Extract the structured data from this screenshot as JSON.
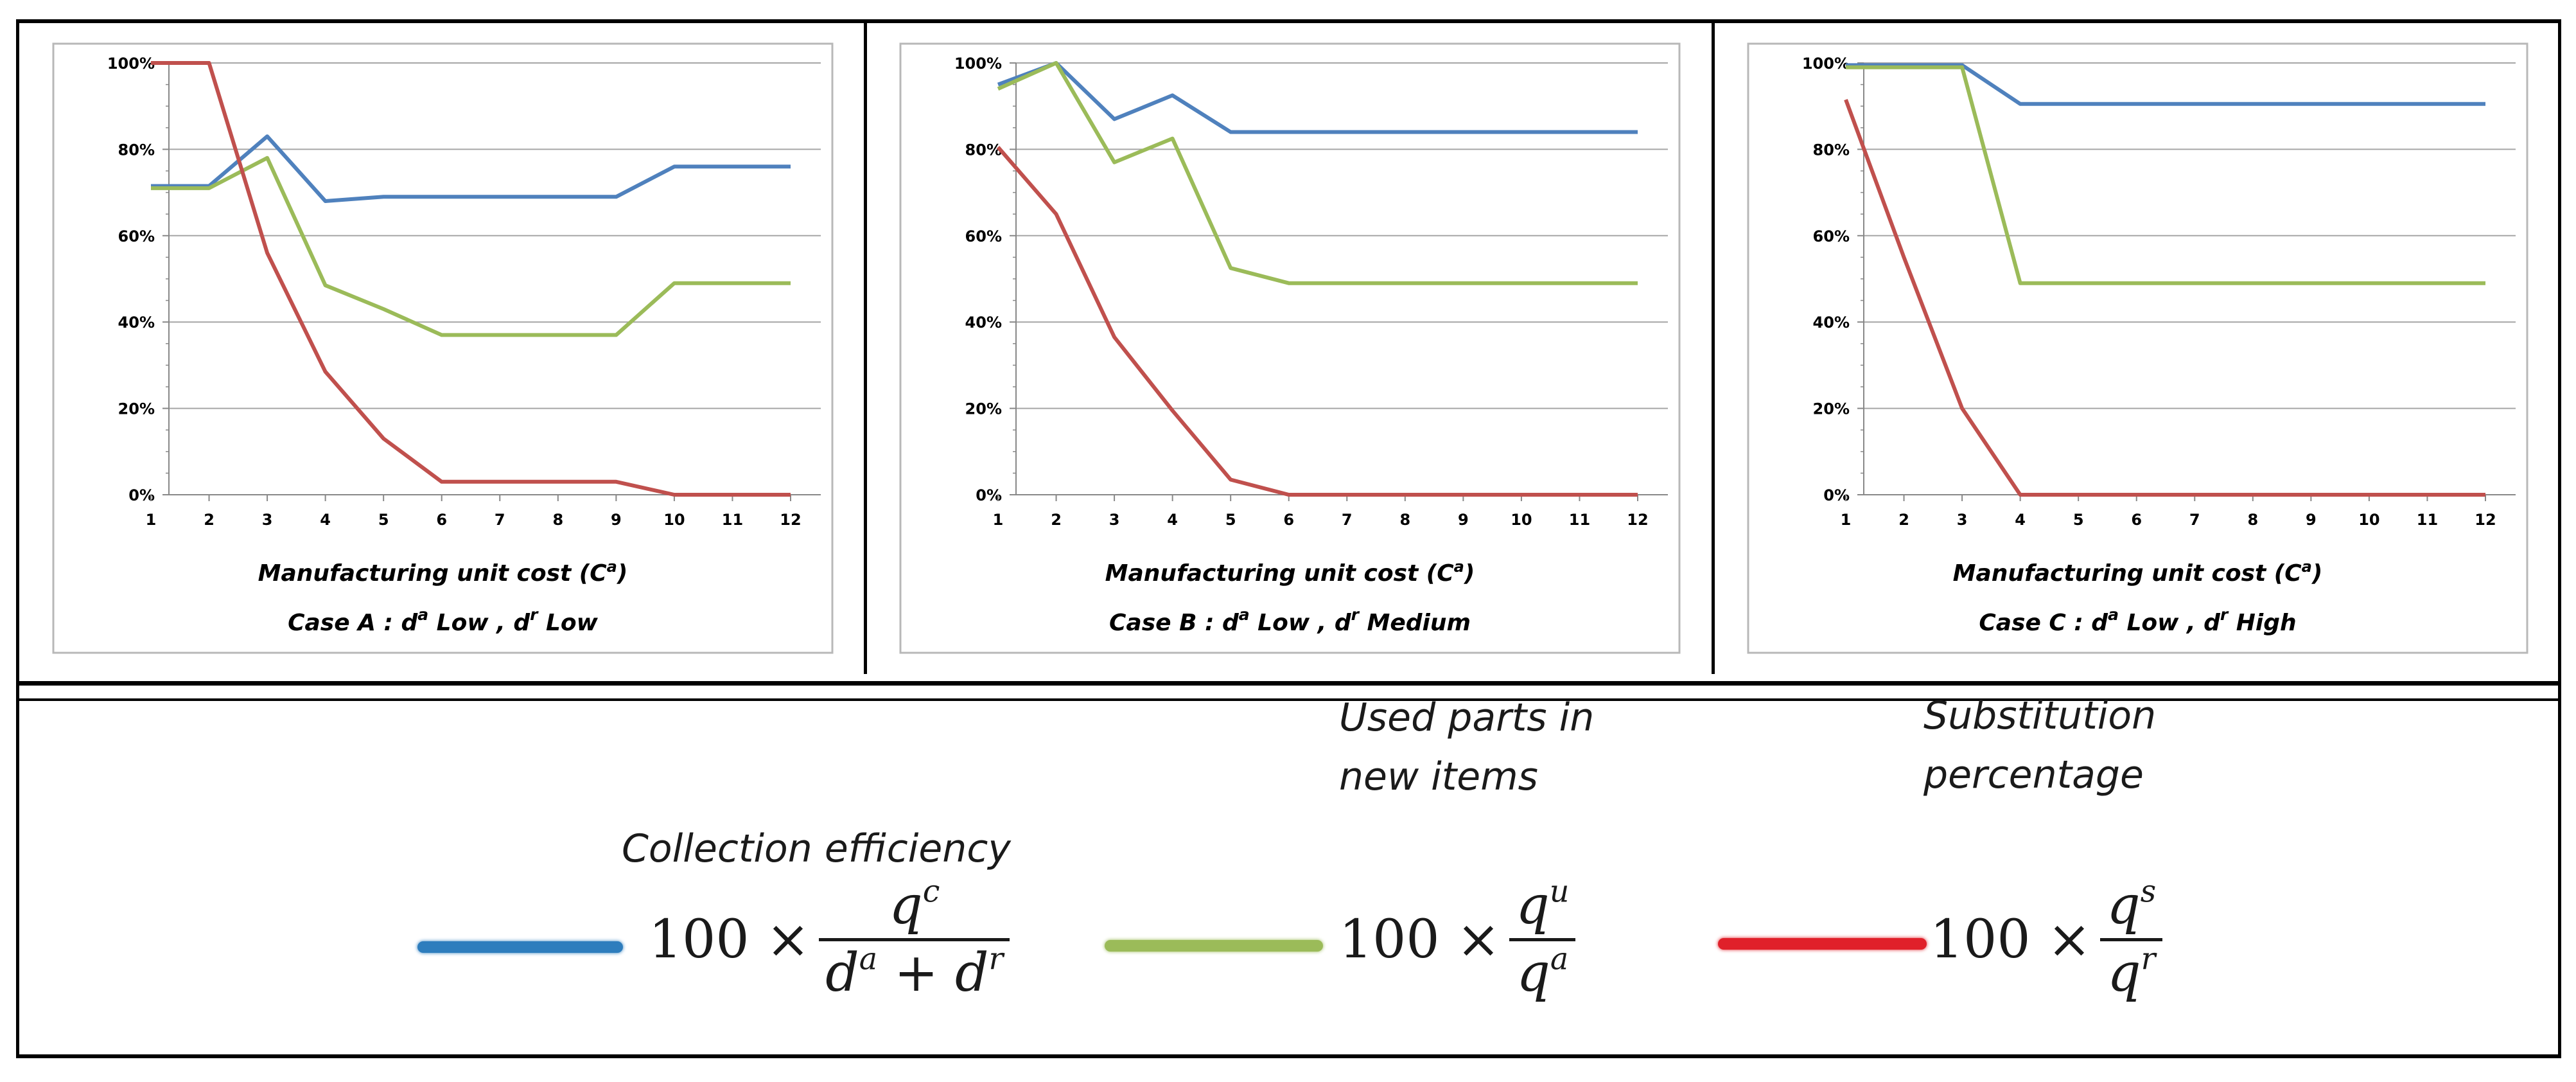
{
  "charts": [
    {
      "case": "A",
      "caption": {
        "prefix": "Case A : d",
        "sup_a": "a",
        "demand_a": "Low",
        "comma": ", d",
        "sup_r": "r",
        "demand_r": "Low"
      }
    },
    {
      "case": "B",
      "caption": {
        "prefix": "Case B : d",
        "sup_a": "a",
        "demand_a": "Low",
        "comma": ", d",
        "sup_r": "r",
        "demand_r": "Medium"
      }
    },
    {
      "case": "C",
      "caption": {
        "prefix": "Case C : d",
        "sup_a": "a",
        "demand_a": "Low",
        "comma": ", d",
        "sup_r": "r",
        "demand_r": "High"
      }
    }
  ],
  "axis": {
    "xlabel_text": "Manufacturing unit cost",
    "xlabel_var": "C",
    "xlabel_sup": "a",
    "x_ticks": [
      "1",
      "2",
      "3",
      "4",
      "5",
      "6",
      "7",
      "8",
      "9",
      "10",
      "11",
      "12"
    ],
    "y_ticks": [
      "0%",
      "20%",
      "40%",
      "60%",
      "80%",
      "100%"
    ]
  },
  "legend": {
    "items": [
      {
        "title_lines": [
          "Collection efficiency"
        ],
        "coef": "100 ×",
        "num": "q",
        "num_sup": "c",
        "den_parts": [
          "d",
          "a",
          " + ",
          "d",
          "r"
        ],
        "color": "#2e7dbd"
      },
      {
        "title_lines": [
          "Used parts in",
          "new items"
        ],
        "coef": "100 ×",
        "num": "q",
        "num_sup": "u",
        "den_parts": [
          "q",
          "a"
        ],
        "color": "#9bbb59"
      },
      {
        "title_lines": [
          "Substitution",
          "percentage"
        ],
        "coef": "100 ×",
        "num": "q",
        "num_sup": "s",
        "den_parts": [
          "q",
          "r"
        ],
        "color": "#e0202a"
      }
    ]
  },
  "chart_data": [
    {
      "type": "line",
      "title": "Case A : d^a Low , d^r Low",
      "xlabel": "Manufacturing unit cost (C^a)",
      "ylabel": "",
      "ylim": [
        0,
        100
      ],
      "x": [
        1,
        2,
        3,
        4,
        5,
        6,
        7,
        8,
        9,
        10,
        11,
        12
      ],
      "series": [
        {
          "name": "Collection efficiency",
          "color": "#4f81bd",
          "values": [
            71.5,
            71.5,
            83,
            68,
            69,
            69,
            69,
            69,
            69,
            76,
            76,
            76
          ]
        },
        {
          "name": "Used parts in new items",
          "color": "#9bbb59",
          "values": [
            71,
            71,
            78,
            48.5,
            43,
            37,
            37,
            37,
            37,
            49,
            49,
            49
          ]
        },
        {
          "name": "Substitution percentage",
          "color": "#c0504d",
          "values": [
            100,
            100,
            56,
            28.5,
            13,
            3,
            3,
            3,
            3,
            0,
            0,
            0
          ]
        }
      ]
    },
    {
      "type": "line",
      "title": "Case B : d^a Low , d^r Medium",
      "xlabel": "Manufacturing unit cost (C^a)",
      "ylabel": "",
      "ylim": [
        0,
        100
      ],
      "x": [
        1,
        2,
        3,
        4,
        5,
        6,
        7,
        8,
        9,
        10,
        11,
        12
      ],
      "series": [
        {
          "name": "Collection efficiency",
          "color": "#4f81bd",
          "values": [
            95,
            100,
            87,
            92.5,
            84,
            84,
            84,
            84,
            84,
            84,
            84,
            84
          ]
        },
        {
          "name": "Used parts in new items",
          "color": "#9bbb59",
          "values": [
            94,
            100,
            77,
            82.5,
            52.5,
            49,
            49,
            49,
            49,
            49,
            49,
            49
          ]
        },
        {
          "name": "Substitution percentage",
          "color": "#c0504d",
          "values": [
            80.5,
            65,
            36.5,
            19.5,
            3.5,
            0,
            0,
            0,
            0,
            0,
            0,
            0
          ]
        }
      ]
    },
    {
      "type": "line",
      "title": "Case C : d^a Low , d^r High",
      "xlabel": "Manufacturing unit cost (C^a)",
      "ylabel": "",
      "ylim": [
        0,
        100
      ],
      "x": [
        1,
        2,
        3,
        4,
        5,
        6,
        7,
        8,
        9,
        10,
        11,
        12
      ],
      "series": [
        {
          "name": "Collection efficiency",
          "color": "#4f81bd",
          "values": [
            99.5,
            99.5,
            99.5,
            90.5,
            90.5,
            90.5,
            90.5,
            90.5,
            90.5,
            90.5,
            90.5,
            90.5
          ]
        },
        {
          "name": "Used parts in new items",
          "color": "#9bbb59",
          "values": [
            99,
            99,
            99,
            49,
            49,
            49,
            49,
            49,
            49,
            49,
            49,
            49
          ]
        },
        {
          "name": "Substitution percentage",
          "color": "#c0504d",
          "values": [
            91.5,
            55,
            20,
            0,
            0,
            0,
            0,
            0,
            0,
            0,
            0,
            0
          ]
        }
      ]
    }
  ]
}
